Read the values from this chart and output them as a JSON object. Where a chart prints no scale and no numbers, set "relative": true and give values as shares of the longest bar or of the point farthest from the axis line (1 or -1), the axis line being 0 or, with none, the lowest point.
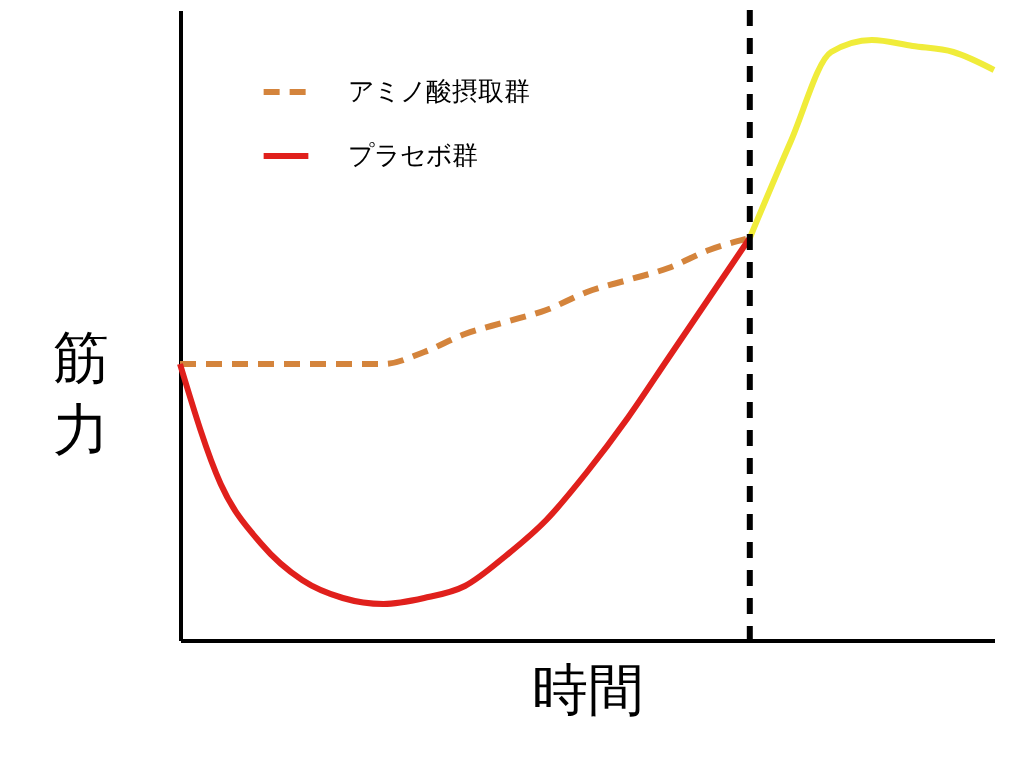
{
  "chart_data": {
    "type": "line",
    "relative": true,
    "xlabel": "時間",
    "ylabel": "筋力",
    "tick_labels": false,
    "grid": false,
    "legend": "top left",
    "marker": "none",
    "categories": [
      null,
      null,
      null,
      null,
      null,
      null,
      null,
      null,
      null,
      null,
      null,
      null,
      null,
      null,
      null,
      null,
      null,
      null,
      null,
      null,
      null
    ],
    "series": [
      {
        "name": "アミノ酸摂取群",
        "color": "#d4843c",
        "line_style": "dashed",
        "values": [
          0.46,
          0.46,
          0.46,
          0.46,
          0.46,
          0.46,
          0.48,
          0.51,
          0.53,
          0.55,
          0.58,
          0.6,
          0.62,
          0.65,
          0.67,
          null,
          null,
          null,
          null,
          null,
          null
        ]
      },
      {
        "name": "プラセボ群",
        "color": "#e0201c",
        "line_style": "solid",
        "values": [
          0.46,
          0.26,
          0.16,
          0.1,
          0.07,
          0.06,
          0.07,
          0.09,
          0.14,
          0.2,
          0.28,
          0.37,
          0.47,
          0.57,
          0.67,
          null,
          null,
          null,
          null,
          null,
          null
        ]
      },
      {
        "color": "#f0ec3a",
        "line_style": "solid",
        "values": [
          null,
          null,
          null,
          null,
          null,
          null,
          null,
          null,
          null,
          null,
          null,
          null,
          null,
          null,
          0.67,
          0.83,
          0.98,
          1.0,
          0.99,
          0.98,
          0.95
        ]
      }
    ]
  }
}
